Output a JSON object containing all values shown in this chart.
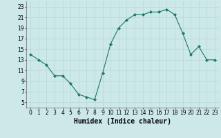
{
  "x": [
    0,
    1,
    2,
    3,
    4,
    5,
    6,
    7,
    8,
    9,
    10,
    11,
    12,
    13,
    14,
    15,
    16,
    17,
    18,
    19,
    20,
    21,
    22,
    23
  ],
  "y": [
    14,
    13,
    12,
    10,
    10,
    8.5,
    6.5,
    6,
    5.5,
    10.5,
    16,
    19,
    20.5,
    21.5,
    21.5,
    22,
    22,
    22.5,
    21.5,
    18,
    14,
    15.5,
    13,
    13
  ],
  "line_color": "#1a7a5e",
  "marker_color": "#1a7a5e",
  "bg_color": "#cce8e8",
  "grid_color": "#b8d8d8",
  "xlabel": "Humidex (Indice chaleur)",
  "xlim": [
    -0.5,
    23.5
  ],
  "ylim": [
    4,
    24
  ],
  "yticks": [
    5,
    7,
    9,
    11,
    13,
    15,
    17,
    19,
    21,
    23
  ],
  "xticks": [
    0,
    1,
    2,
    3,
    4,
    5,
    6,
    7,
    8,
    9,
    10,
    11,
    12,
    13,
    14,
    15,
    16,
    17,
    18,
    19,
    20,
    21,
    22,
    23
  ],
  "tick_fontsize": 5.5,
  "label_fontsize": 7
}
